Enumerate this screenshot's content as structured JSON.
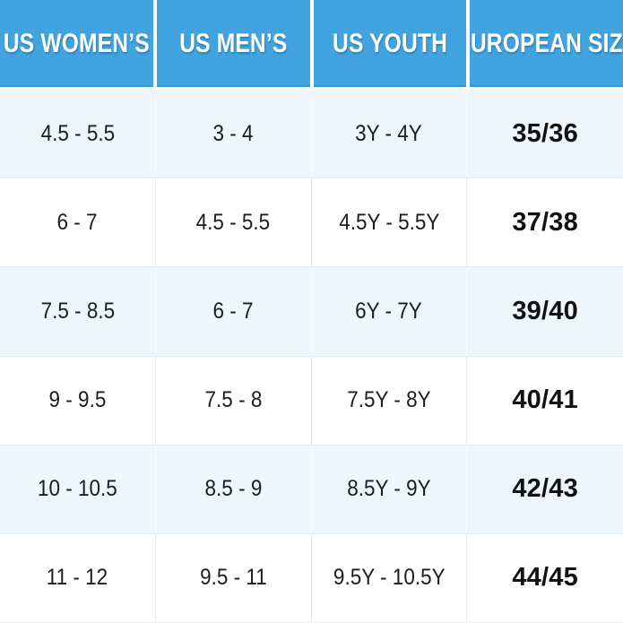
{
  "chart_data": {
    "type": "table",
    "columns": [
      "US WOMEN’S",
      "US MEN’S",
      "US YOUTH",
      "EUROPEAN SIZE"
    ],
    "rows": [
      [
        "4.5 - 5.5",
        "3 - 4",
        "3Y - 4Y",
        "35/36"
      ],
      [
        "6 - 7",
        "4.5 - 5.5",
        "4.5Y - 5.5Y",
        "37/38"
      ],
      [
        "7.5 - 8.5",
        "6 - 7",
        "6Y - 7Y",
        "39/40"
      ],
      [
        "9 - 9.5",
        "7.5 - 8",
        "7.5Y - 8Y",
        "40/41"
      ],
      [
        "10 - 10.5",
        "8.5 - 9",
        "8.5Y - 9Y",
        "42/43"
      ],
      [
        "11 - 12",
        "9.5 - 11",
        "9.5Y - 10.5Y",
        "44/45"
      ]
    ],
    "layout": {
      "header_position": "top",
      "alternating_rows": true,
      "bold_column": "EUROPEAN SIZE"
    }
  },
  "colors": {
    "header_bg": "#42A4DF",
    "header_text": "#FFFFFF",
    "row_alt_bg": "#EEF5FB",
    "row_bg": "#FFFFFF",
    "body_text": "#1C1C1C",
    "divider": "#E9E9E9"
  }
}
